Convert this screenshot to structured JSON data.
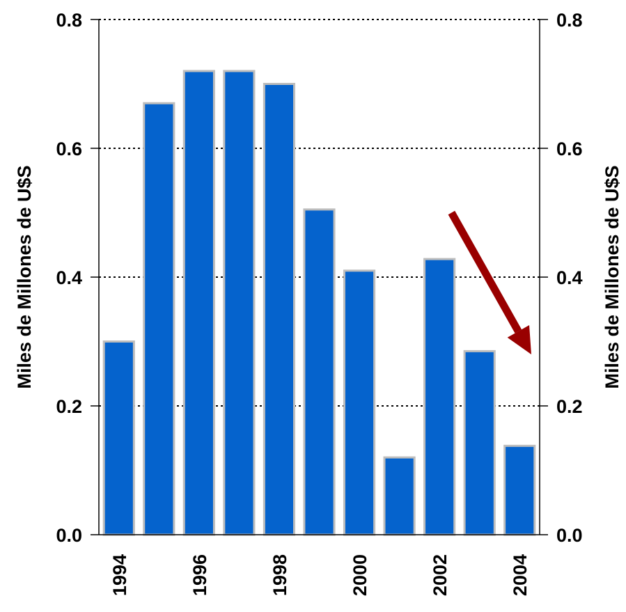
{
  "chart_data": {
    "type": "bar",
    "categories": [
      "1994",
      "1995",
      "1996",
      "1997",
      "1998",
      "1999",
      "2000",
      "2001",
      "2002",
      "2003",
      "2004"
    ],
    "values": [
      0.3,
      0.67,
      0.72,
      0.72,
      0.7,
      0.505,
      0.41,
      0.12,
      0.428,
      0.285,
      0.138
    ],
    "x_tick_labels": [
      "1994",
      "1996",
      "1998",
      "2000",
      "2002",
      "2004"
    ],
    "y_ticks": [
      "0.0",
      "0.2",
      "0.4",
      "0.6",
      "0.8"
    ],
    "ylim": [
      0,
      0.8
    ],
    "ylabel_left": "Miles de Millones de U$S",
    "ylabel_right": "Miles de Millones de U$S",
    "grid": true,
    "colors": {
      "bar": "#0563CD",
      "bar_edge": "#BDBDBD",
      "arrow": "#990000"
    },
    "annotation": {
      "type": "arrow",
      "description": "downward trend",
      "from_value": 0.5,
      "to_value": 0.28
    }
  }
}
